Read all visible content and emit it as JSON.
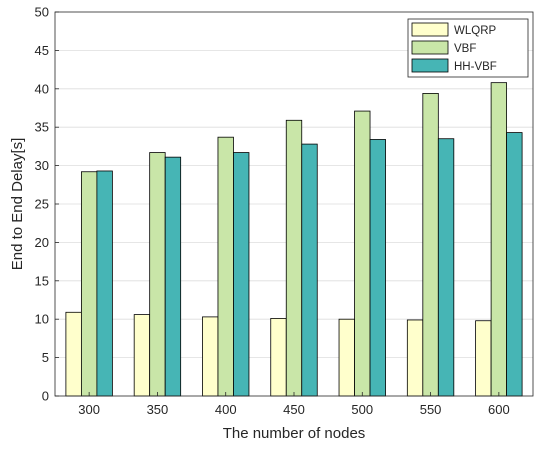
{
  "chart_data": {
    "type": "bar",
    "title": "",
    "xlabel": "The number of nodes",
    "ylabel": "End to End Delay[s]",
    "categories": [
      "300",
      "350",
      "400",
      "450",
      "500",
      "550",
      "600"
    ],
    "ylim": [
      0,
      50
    ],
    "yticks": [
      0,
      5,
      10,
      15,
      20,
      25,
      30,
      35,
      40,
      45,
      50
    ],
    "grid": true,
    "legend_position": "top-right",
    "series": [
      {
        "name": "WLQRP",
        "color": "#ffffcc",
        "values": [
          10.9,
          10.6,
          10.3,
          10.1,
          10.0,
          9.9,
          9.8
        ]
      },
      {
        "name": "VBF",
        "color": "#c9e6a8",
        "values": [
          29.2,
          31.7,
          33.7,
          35.9,
          37.1,
          39.4,
          40.8
        ]
      },
      {
        "name": "HH-VBF",
        "color": "#46b5b5",
        "values": [
          29.3,
          31.1,
          31.7,
          32.8,
          33.4,
          33.5,
          34.3
        ]
      }
    ]
  }
}
